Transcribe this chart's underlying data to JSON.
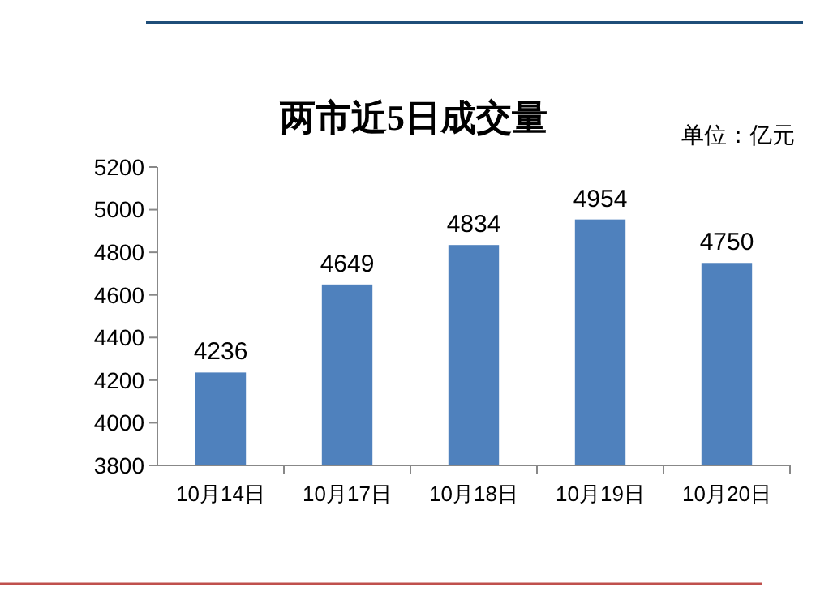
{
  "chart_data": {
    "type": "bar",
    "title": "两市近5日成交量",
    "annotations": [
      "单位：亿元"
    ],
    "categories": [
      "10月14日",
      "10月17日",
      "10月18日",
      "10月19日",
      "10月20日"
    ],
    "values": [
      4236,
      4649,
      4834,
      4954,
      4750
    ],
    "color": "#4f81bd",
    "ylim": [
      3800,
      5200
    ],
    "yticks": [
      3800,
      4000,
      4200,
      4400,
      4600,
      4800,
      5000,
      5200
    ],
    "data_labels": true
  }
}
